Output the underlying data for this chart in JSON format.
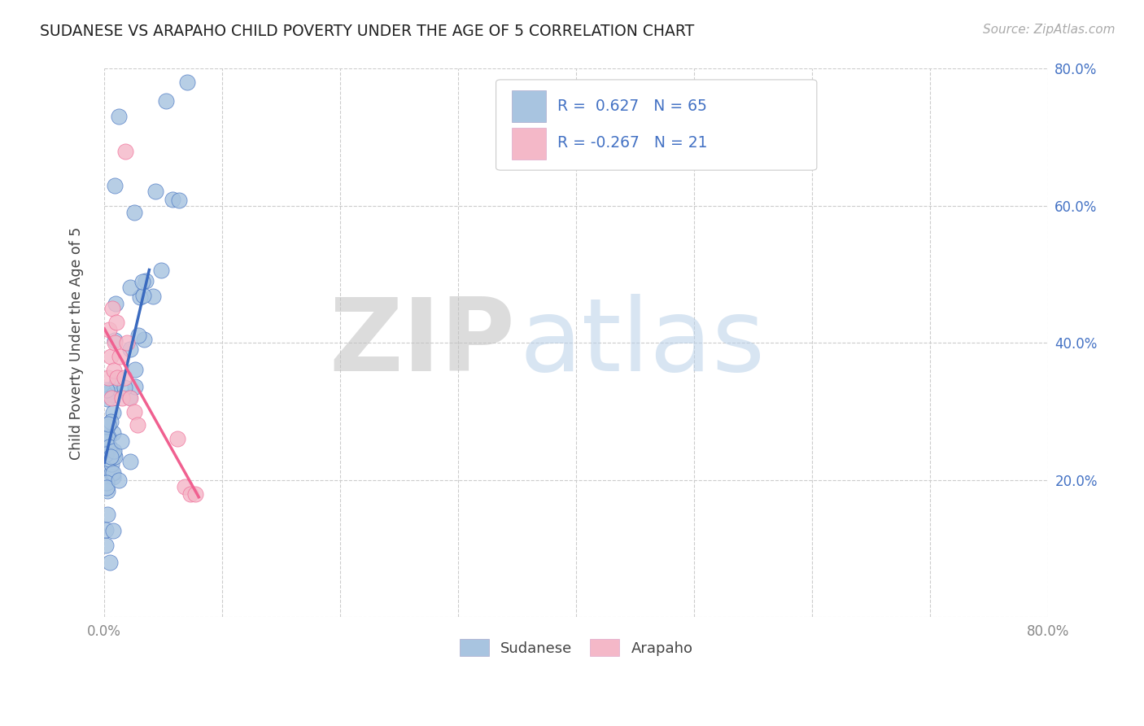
{
  "title": "SUDANESE VS ARAPAHO CHILD POVERTY UNDER THE AGE OF 5 CORRELATION CHART",
  "source": "Source: ZipAtlas.com",
  "ylabel": "Child Poverty Under the Age of 5",
  "xlim": [
    0.0,
    0.8
  ],
  "ylim": [
    0.0,
    0.8
  ],
  "sudanese_color": "#a8c4e0",
  "arapaho_color": "#f4b8c8",
  "sudanese_line_color": "#3a6abf",
  "arapaho_line_color": "#f06090",
  "legend_r_sud": "0.627",
  "legend_n_sud": "65",
  "legend_r_ara": "-0.267",
  "legend_n_ara": "21",
  "title_color": "#222222",
  "tick_color": "#888888",
  "right_tick_color": "#4472c4",
  "grid_color": "#cccccc"
}
